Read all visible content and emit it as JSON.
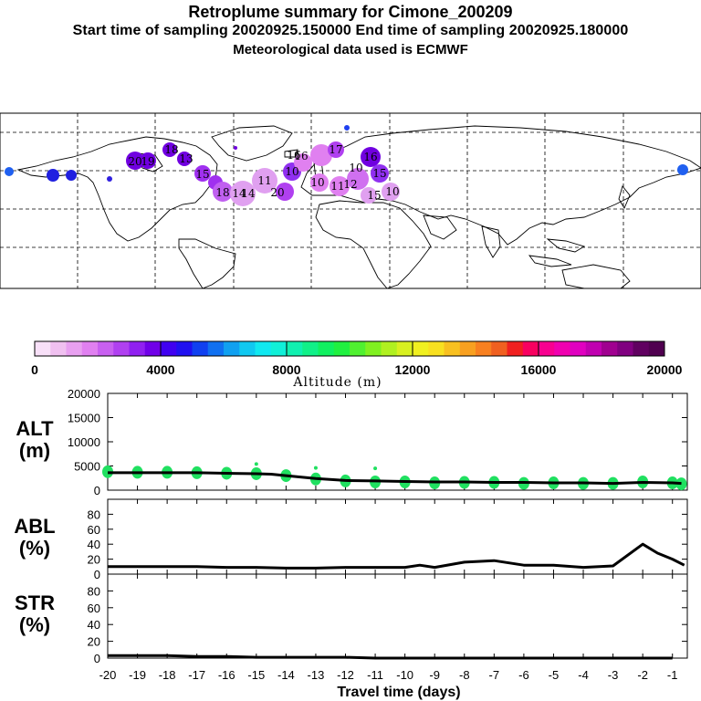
{
  "header": {
    "title": "Retroplume summary for Cimone_200209",
    "sampling": "Start time of sampling 20020925.150000     End time of sampling 20020925.180000",
    "met": "Meteorological data used is ECMWF"
  },
  "colorbar": {
    "label": "Altitude (m)",
    "ticks": [
      "0",
      "4000",
      "8000",
      "12000",
      "16000",
      "20000"
    ],
    "colors": [
      "#f8e0f8",
      "#f0c0f0",
      "#e8a0f0",
      "#e080f0",
      "#c860f0",
      "#b040f0",
      "#9020f0",
      "#7000e8",
      "#4000f0",
      "#2010f0",
      "#1040f0",
      "#1070f0",
      "#10a0f0",
      "#10c8f0",
      "#10e8f0",
      "#10f0d8",
      "#10f0b0",
      "#10f088",
      "#10f060",
      "#20f040",
      "#50f030",
      "#80f020",
      "#b0f020",
      "#d8f020",
      "#f0f020",
      "#f8e020",
      "#f8c020",
      "#f8a020",
      "#f88020",
      "#f06020",
      "#f02020",
      "#f80060",
      "#f80090",
      "#f000b0",
      "#e000c0",
      "#c000b0",
      "#a00090",
      "#800080",
      "#600060",
      "#500050"
    ]
  },
  "map": {
    "plume_labels": [
      "20",
      "18",
      "19",
      "15",
      "13",
      "18",
      "14",
      "11",
      "10",
      "20",
      "16",
      "17",
      "16",
      "15",
      "10",
      "11",
      "12",
      "15",
      "14",
      "16",
      "10",
      "10"
    ]
  },
  "panels": {
    "alt_label": [
      "ALT",
      "(m)"
    ],
    "abl_label": [
      "ABL",
      "(%)"
    ],
    "str_label": [
      "STR",
      "(%)"
    ],
    "alt_ticks": [
      "20000",
      "15000",
      "10000",
      "5000",
      "0"
    ],
    "abl_ticks": [
      "80",
      "60",
      "40",
      "20",
      "0"
    ],
    "str_ticks": [
      "80",
      "60",
      "40",
      "20",
      "0"
    ],
    "x_ticks": [
      "-20",
      "-19",
      "-18",
      "-17",
      "-16",
      "-15",
      "-14",
      "-13",
      "-12",
      "-11",
      "-10",
      "-9",
      "-8",
      "-7",
      "-6",
      "-5",
      "-4",
      "-3",
      "-2",
      "-1"
    ],
    "xlabel": "Travel time (days)"
  },
  "chart_data": [
    {
      "type": "line",
      "title": "ALT (m)",
      "ylabel": "ALT (m)",
      "xlabel": "Travel time (days)",
      "ylim": [
        0,
        20000
      ],
      "xlim": [
        -20,
        -0.5
      ],
      "x": [
        -20,
        -19,
        -18,
        -17,
        -16,
        -15,
        -14.5,
        -14,
        -13,
        -12,
        -11,
        -10,
        -9,
        -8,
        -7,
        -6,
        -5,
        -4,
        -3,
        -2,
        -1,
        -0.7
      ],
      "values": [
        3600,
        3600,
        3600,
        3600,
        3500,
        3400,
        3300,
        3000,
        2400,
        2000,
        1900,
        1800,
        1700,
        1700,
        1600,
        1600,
        1500,
        1500,
        1400,
        1600,
        1500,
        1400
      ],
      "scatter_points": {
        "x": [
          -20,
          -19,
          -18,
          -17,
          -16,
          -15,
          -15,
          -14,
          -13,
          -13,
          -12,
          -11,
          -11,
          -10,
          -9,
          -8,
          -7,
          -6,
          -5,
          -4,
          -3,
          -2,
          -1,
          -0.7
        ],
        "y": [
          3800,
          3700,
          3700,
          3600,
          3500,
          3400,
          5400,
          3000,
          2300,
          4600,
          1900,
          1700,
          4500,
          1700,
          1500,
          1600,
          1600,
          1400,
          1500,
          1400,
          1400,
          1700,
          1500,
          1300
        ],
        "color": "#20e060"
      }
    },
    {
      "type": "line",
      "title": "ABL (%)",
      "ylabel": "ABL (%)",
      "ylim": [
        0,
        100
      ],
      "xlim": [
        -20,
        -0.5
      ],
      "x": [
        -20,
        -19,
        -18,
        -17,
        -16,
        -15,
        -14,
        -13,
        -12,
        -11,
        -10,
        -9.5,
        -9,
        -8,
        -7,
        -6,
        -5,
        -4,
        -3,
        -2,
        -1.5,
        -1,
        -0.6
      ],
      "values": [
        10,
        10,
        10,
        10,
        9,
        9,
        8,
        8,
        9,
        9,
        9,
        12,
        9,
        16,
        18,
        12,
        12,
        9,
        11,
        40,
        28,
        20,
        12
      ]
    },
    {
      "type": "line",
      "title": "STR (%)",
      "ylabel": "STR (%)",
      "ylim": [
        0,
        100
      ],
      "xlim": [
        -20,
        -0.5
      ],
      "x": [
        -20,
        -19,
        -18,
        -17,
        -16,
        -15,
        -14,
        -13,
        -12,
        -11,
        -10,
        -9,
        -8,
        -7,
        -6,
        -5,
        -4,
        -3,
        -2,
        -1
      ],
      "values": [
        3,
        3,
        3,
        2,
        2,
        1,
        1,
        1,
        1,
        0,
        0,
        0,
        0,
        0,
        0,
        0,
        0,
        0,
        0,
        0
      ]
    }
  ]
}
